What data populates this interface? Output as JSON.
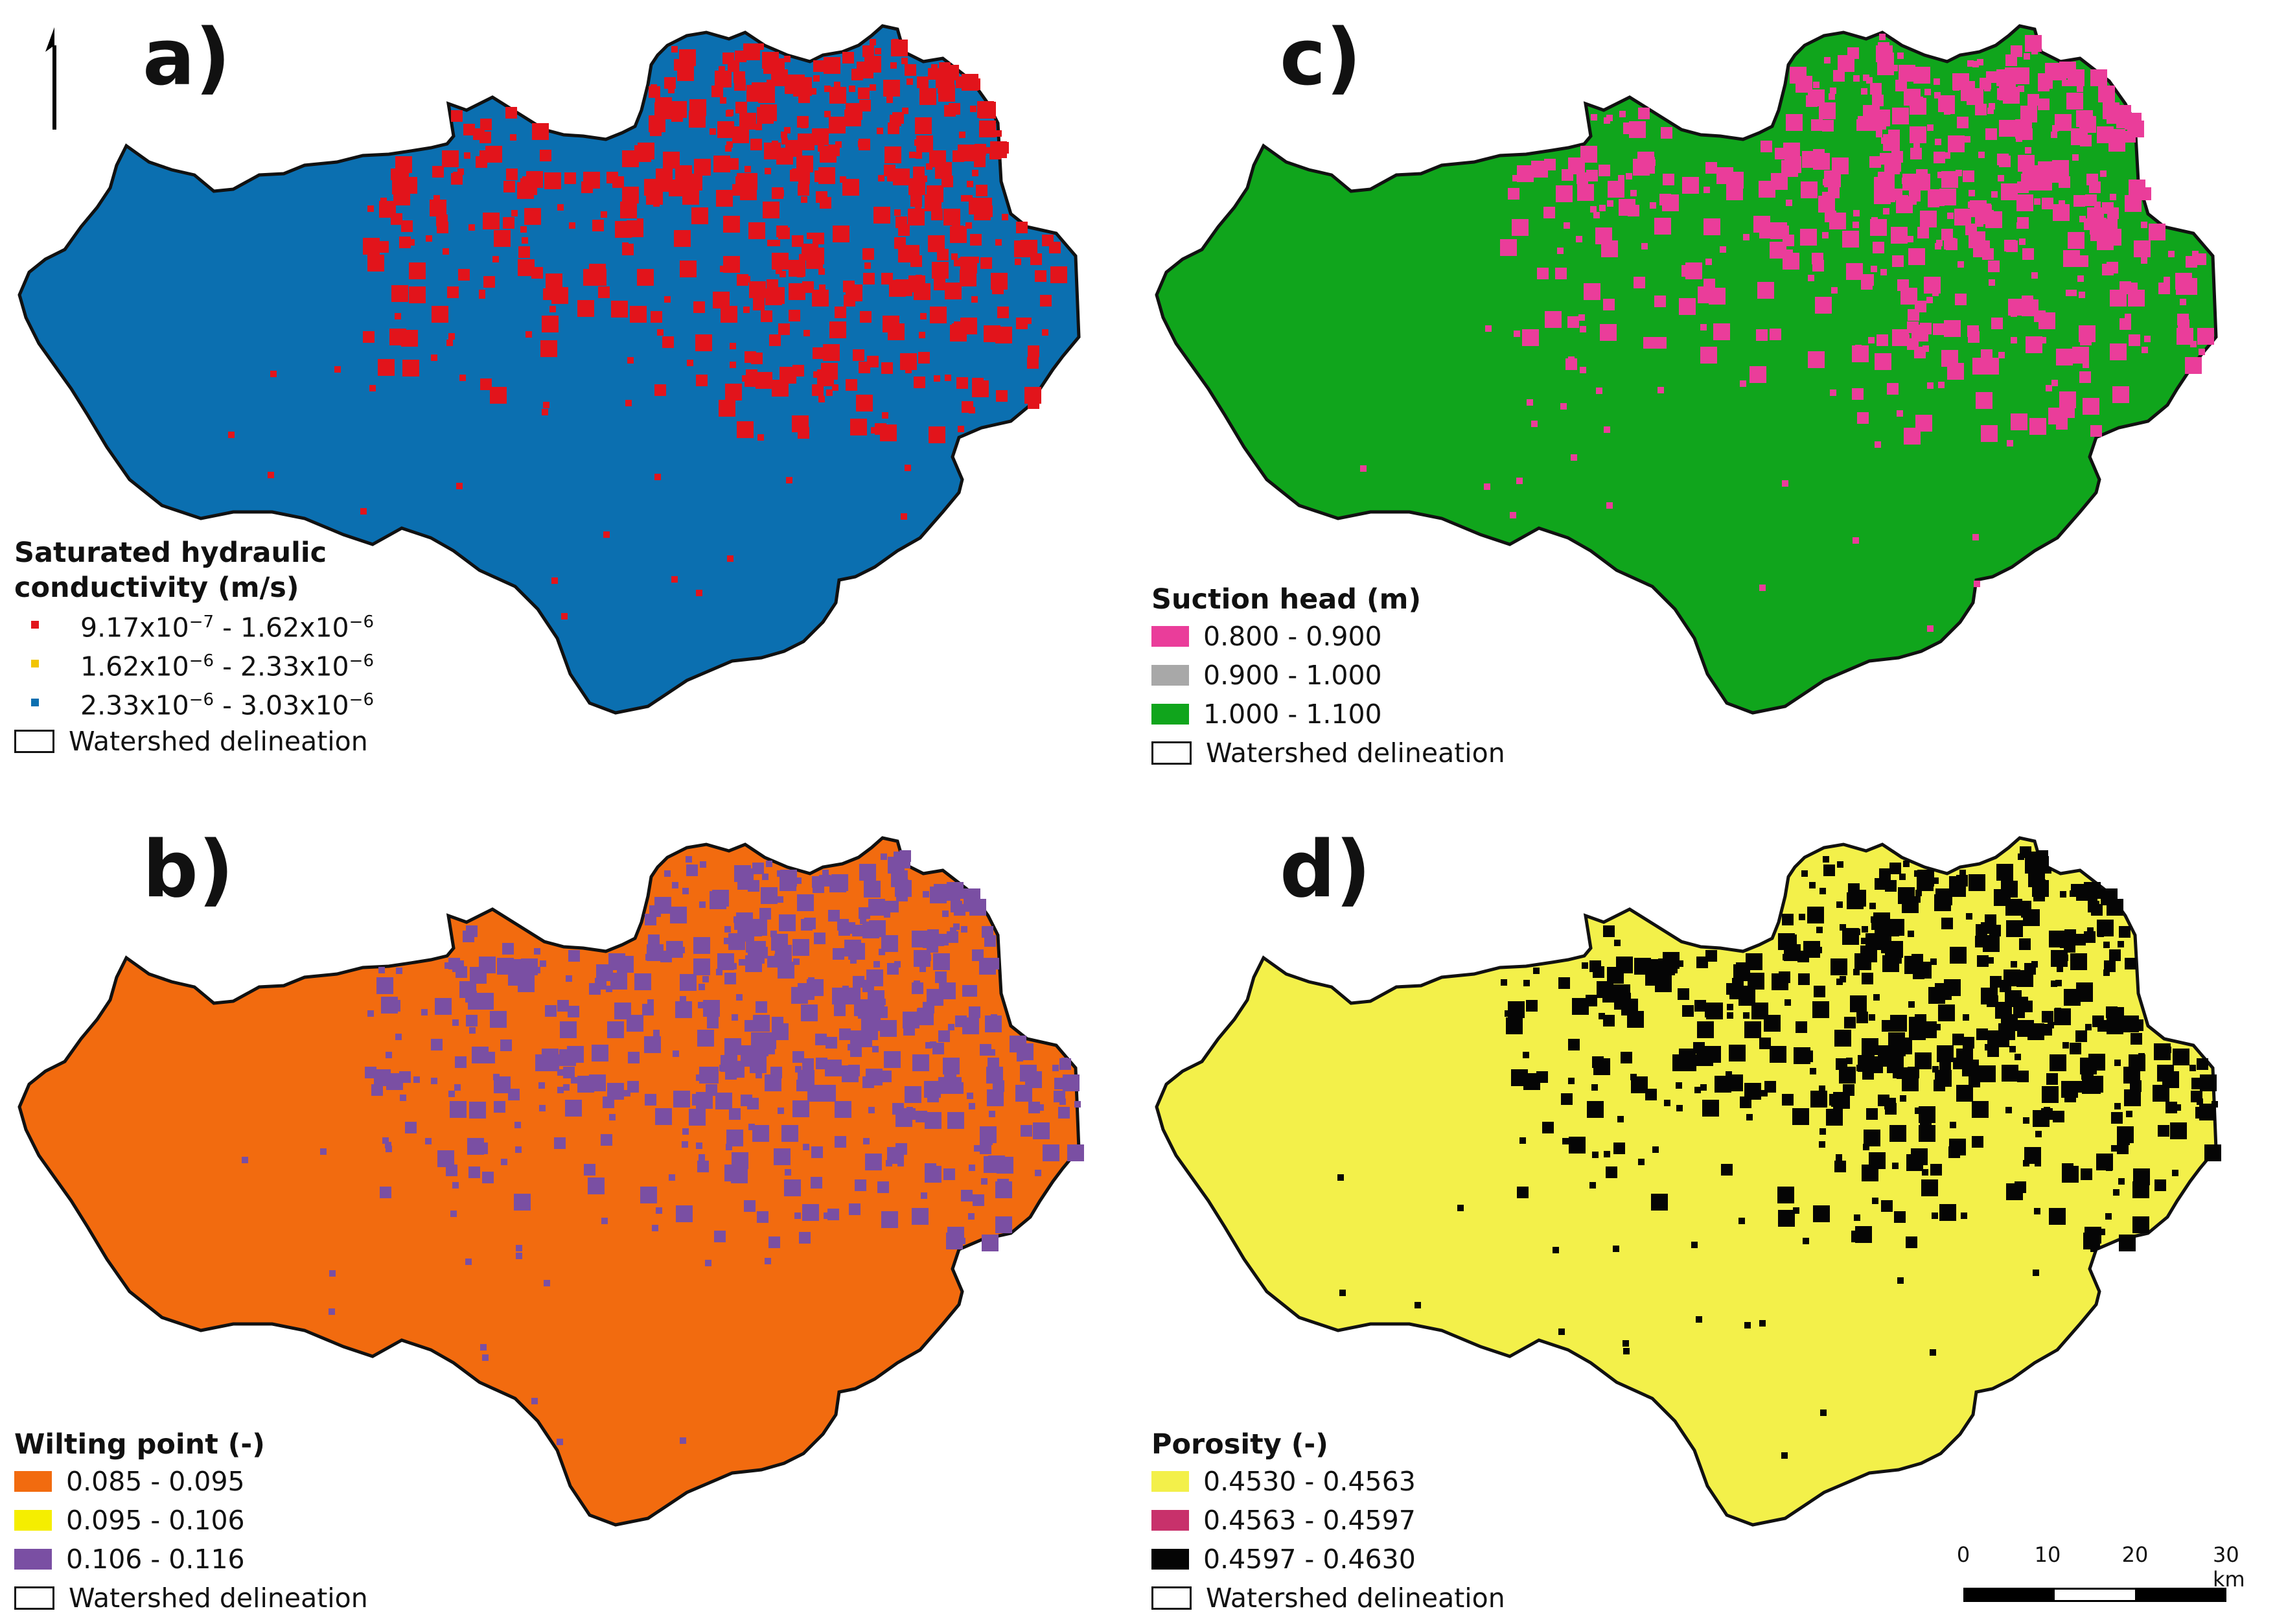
{
  "panels": {
    "a": {
      "letter": "a)",
      "colors": {
        "background": "#0b6fb0",
        "patch": "#e2141b"
      },
      "legend": {
        "title_line1": "Saturated hydraulic",
        "title_line2": "conductivity (m/s)",
        "items": [
          {
            "label_html": "9.17x10<sup>−7</sup> - 1.62x10<sup>−6</sup>",
            "color": "#e2141b"
          },
          {
            "label_html": "1.62x10<sup>−6</sup> - 2.33x10<sup>−6</sup>",
            "color": "#f2c500"
          },
          {
            "label_html": "2.33x10<sup>−6</sup> - 3.03x10<sup>−6</sup>",
            "color": "#0b6fb0"
          }
        ],
        "outline_label": "Watershed delineation"
      }
    },
    "c": {
      "letter": "c)",
      "colors": {
        "background": "#10a51c",
        "patch": "#ea3d9a"
      },
      "legend": {
        "title": "Suction head (m)",
        "items": [
          {
            "label": "0.800 - 0.900",
            "color": "#ea3d9a"
          },
          {
            "label": "0.900 - 1.000",
            "color": "#a8a8a8"
          },
          {
            "label": "1.000 - 1.100",
            "color": "#10a51c"
          }
        ],
        "outline_label": "Watershed delineation"
      }
    },
    "b": {
      "letter": "b)",
      "colors": {
        "background": "#f26b0f",
        "patch": "#7a4fa3"
      },
      "legend": {
        "title": "Wilting point (-)",
        "items": [
          {
            "label": "0.085 - 0.095",
            "color": "#f26b0f"
          },
          {
            "label": "0.095 - 0.106",
            "color": "#f5ee00"
          },
          {
            "label": "0.106 - 0.116",
            "color": "#7a4fa3"
          }
        ],
        "outline_label": "Watershed delineation"
      }
    },
    "d": {
      "letter": "d)",
      "colors": {
        "background": "#f3f04a",
        "patch": "#050505"
      },
      "legend": {
        "title": "Porosity (-)",
        "items": [
          {
            "label": "0.4530 - 0.4563",
            "color": "#f3f04a"
          },
          {
            "label": "0.4563 - 0.4597",
            "color": "#c8316b"
          },
          {
            "label": "0.4597 - 0.4630",
            "color": "#050505"
          }
        ],
        "outline_label": "Watershed delineation"
      }
    }
  },
  "scale_bar": {
    "labels": [
      "0",
      "10",
      "20",
      "30 km"
    ]
  },
  "north_arrow": {
    "icon": "north-arrow-icon"
  }
}
